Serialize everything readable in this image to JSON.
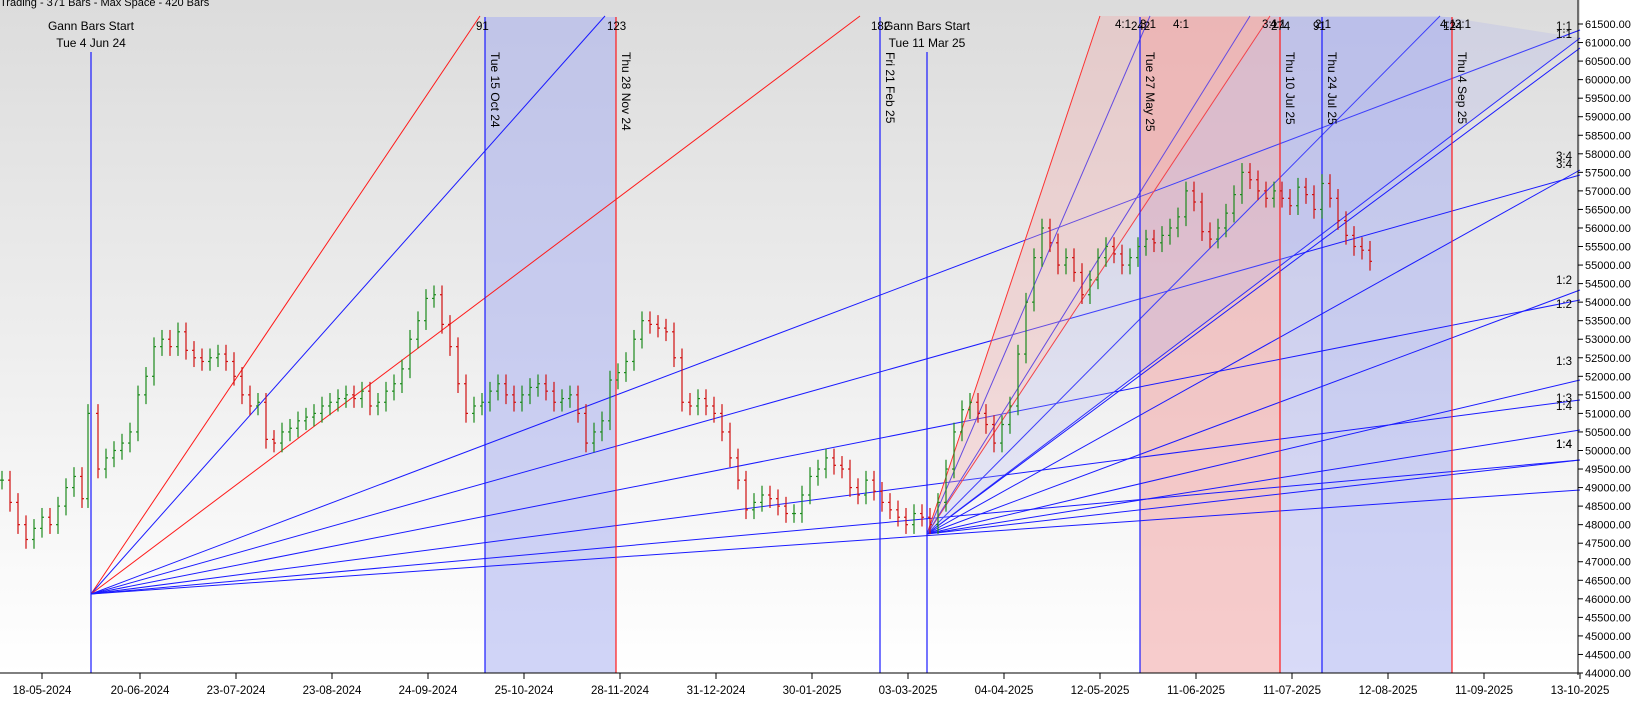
{
  "header": {
    "text": "Trading - 371 Bars -  Max Space - 420 Bars"
  },
  "colors": {
    "blue": "#1a1aff",
    "red": "#ff1a1a",
    "up": "#1c8a1c",
    "down": "#d01010",
    "axis": "#000000"
  },
  "chart_data": {
    "type": "candlestick-ohlc",
    "y_axis_ticks": [
      "61500.00",
      "61000.00",
      "60500.00",
      "60000.00",
      "59500.00",
      "59000.00",
      "58500.00",
      "58000.00",
      "57500.00",
      "57000.00",
      "56500.00",
      "56000.00",
      "55500.00",
      "55000.00",
      "54500.00",
      "54000.00",
      "53500.00",
      "53000.00",
      "52500.00",
      "52000.00",
      "51500.00",
      "51000.00",
      "50500.00",
      "50000.00",
      "49500.00",
      "49000.00",
      "48500.00",
      "48000.00",
      "47500.00",
      "47000.00",
      "46500.00",
      "46000.00",
      "45500.00",
      "45000.00",
      "44500.00",
      "44000.00"
    ],
    "x_axis_ticks": [
      "18-05-2024",
      "20-06-2024",
      "23-07-2024",
      "23-08-2024",
      "24-09-2024",
      "25-10-2024",
      "28-11-2024",
      "31-12-2024",
      "30-01-2025",
      "03-03-2025",
      "04-04-2025",
      "12-05-2025",
      "11-06-2025",
      "11-07-2025",
      "12-08-2025",
      "11-09-2025",
      "13-10-2025"
    ],
    "ylim": [
      44000,
      61600
    ],
    "start_labels": [
      {
        "line1": "Gann Bars Start",
        "line2": "Tue 4 Jun 24"
      },
      {
        "line1": "Gann Bars Start",
        "line2": "Tue 11 Mar 25"
      }
    ],
    "vertical_markers": [
      {
        "label": "Tue 15 Oct 24",
        "color": "blue",
        "top_label": "91"
      },
      {
        "label": "Thu 28 Nov 24",
        "color": "red",
        "top_label": "123"
      },
      {
        "label": "Fri 21 Feb 25",
        "color": "blue",
        "top_label": "182"
      },
      {
        "label": "Tue 27 May 25",
        "color": "blue",
        "top_label": "242"
      },
      {
        "label": "Thu 10 Jul 25",
        "color": "red",
        "top_label": "274"
      },
      {
        "label": "Thu 24 Jul 25",
        "color": "blue",
        "top_label": "91"
      },
      {
        "label": "Thu 4 Sep 25",
        "color": "red",
        "top_label": "124"
      }
    ],
    "fan_top_ratios": [
      "4:1",
      "3:1",
      "4:1",
      "3:1",
      "4:1",
      "2:1",
      "4:1",
      "3:1"
    ],
    "fan_right_ratios": [
      "1:1",
      "1:1",
      "3:4",
      "3:4",
      "1:2",
      "1:2",
      "1:3",
      "1:3",
      "1:4",
      "1:4",
      "1:4"
    ],
    "ohlc_series": [],
    "fans": [
      {
        "origin": "Tue 4 Jun 24"
      },
      {
        "origin": "Tue 11 Mar 25"
      }
    ]
  }
}
